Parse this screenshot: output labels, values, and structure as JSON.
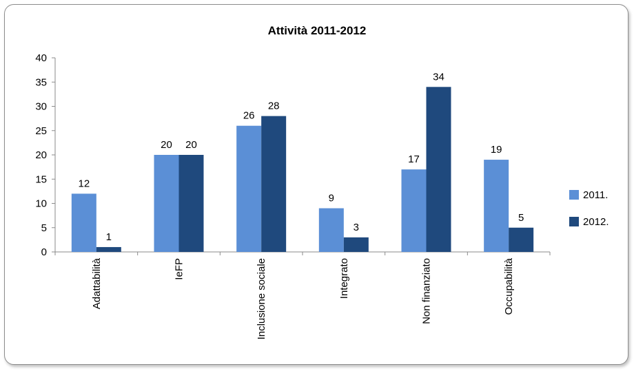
{
  "chart_data": {
    "type": "bar",
    "title": "Attività 2011-2012",
    "categories": [
      "Adattabilità",
      "IeFP",
      "Inclusione sociale",
      "Integrato",
      "Non finanziato",
      "Occupabilità"
    ],
    "series": [
      {
        "name": "2011.",
        "values": [
          12,
          20,
          26,
          9,
          17,
          19
        ],
        "color": "#5b8fd6"
      },
      {
        "name": "2012.",
        "values": [
          1,
          20,
          28,
          3,
          34,
          5
        ],
        "color": "#1f497d"
      }
    ],
    "xlabel": "",
    "ylabel": "",
    "ylim": [
      0,
      40
    ],
    "yticks": [
      0,
      5,
      10,
      15,
      20,
      25,
      30,
      35,
      40
    ],
    "grid": false,
    "legend": "right"
  }
}
